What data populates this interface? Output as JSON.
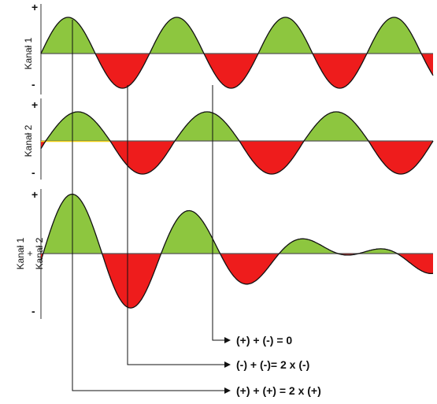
{
  "colors": {
    "positive": "#8dc63f",
    "negative": "#ee1c1c",
    "axis": "#555555",
    "curve": "#111111",
    "baseline_highlight": "#f2d21b"
  },
  "signs": {
    "plus": "+",
    "minus": "-"
  },
  "channels": [
    {
      "label": "Kanał 1",
      "cycles": 4
    },
    {
      "label": "Kanał 2",
      "cycles": 3
    },
    {
      "label_lines": [
        "Kanał 1",
        "+",
        "Kanał 2"
      ]
    }
  ],
  "annotations": [
    {
      "text": "(+) + (-) = 0"
    },
    {
      "text": "(-) + (-)= 2 x (-)"
    },
    {
      "text": "(+) + (+) = 2 x (+)"
    }
  ]
}
